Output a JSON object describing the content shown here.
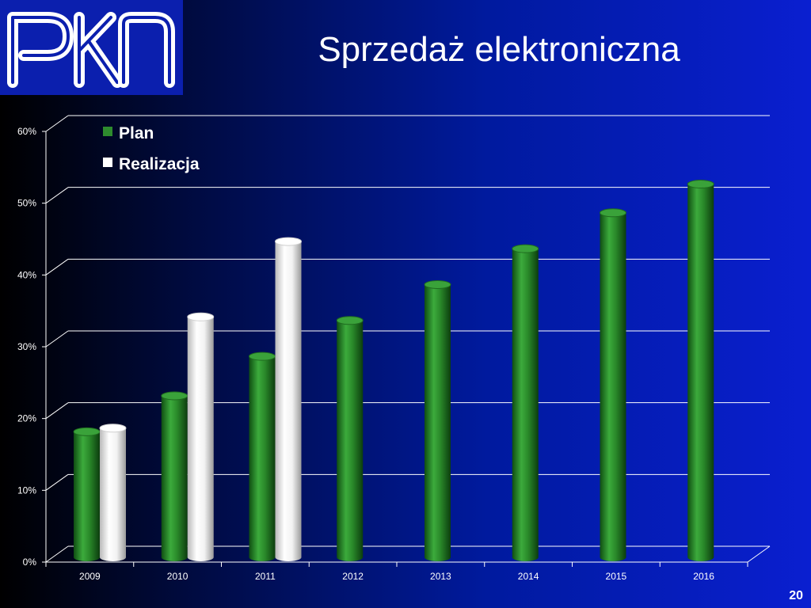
{
  "title": "Sprzedaż elektroniczna",
  "page_number": "20",
  "logo": {
    "text": "PKN",
    "icon": "pkn-logo"
  },
  "colors": {
    "plan": "#2e8b2e",
    "realizacja": "#ffffff",
    "background_left": "#000000",
    "background_right": "#0a1fd0",
    "logo_bg": "#0b1fae",
    "gridline": "#ffffff"
  },
  "chart_data": {
    "type": "bar",
    "categories": [
      "2009",
      "2010",
      "2011",
      "2012",
      "2013",
      "2014",
      "2015",
      "2016"
    ],
    "series": [
      {
        "name": "Plan",
        "values": [
          17.5,
          22.5,
          28,
          33,
          38,
          43,
          48,
          52
        ]
      },
      {
        "name": "Realizacja",
        "values": [
          18,
          33.5,
          44,
          null,
          null,
          null,
          null,
          null
        ]
      }
    ],
    "y_ticks": [
      "0%",
      "10%",
      "20%",
      "30%",
      "40%",
      "50%",
      "60%"
    ],
    "ylim": [
      0,
      60
    ],
    "y_unit": "%",
    "grid": true,
    "legend_position": "top-left",
    "style": "3d-cylinder"
  }
}
